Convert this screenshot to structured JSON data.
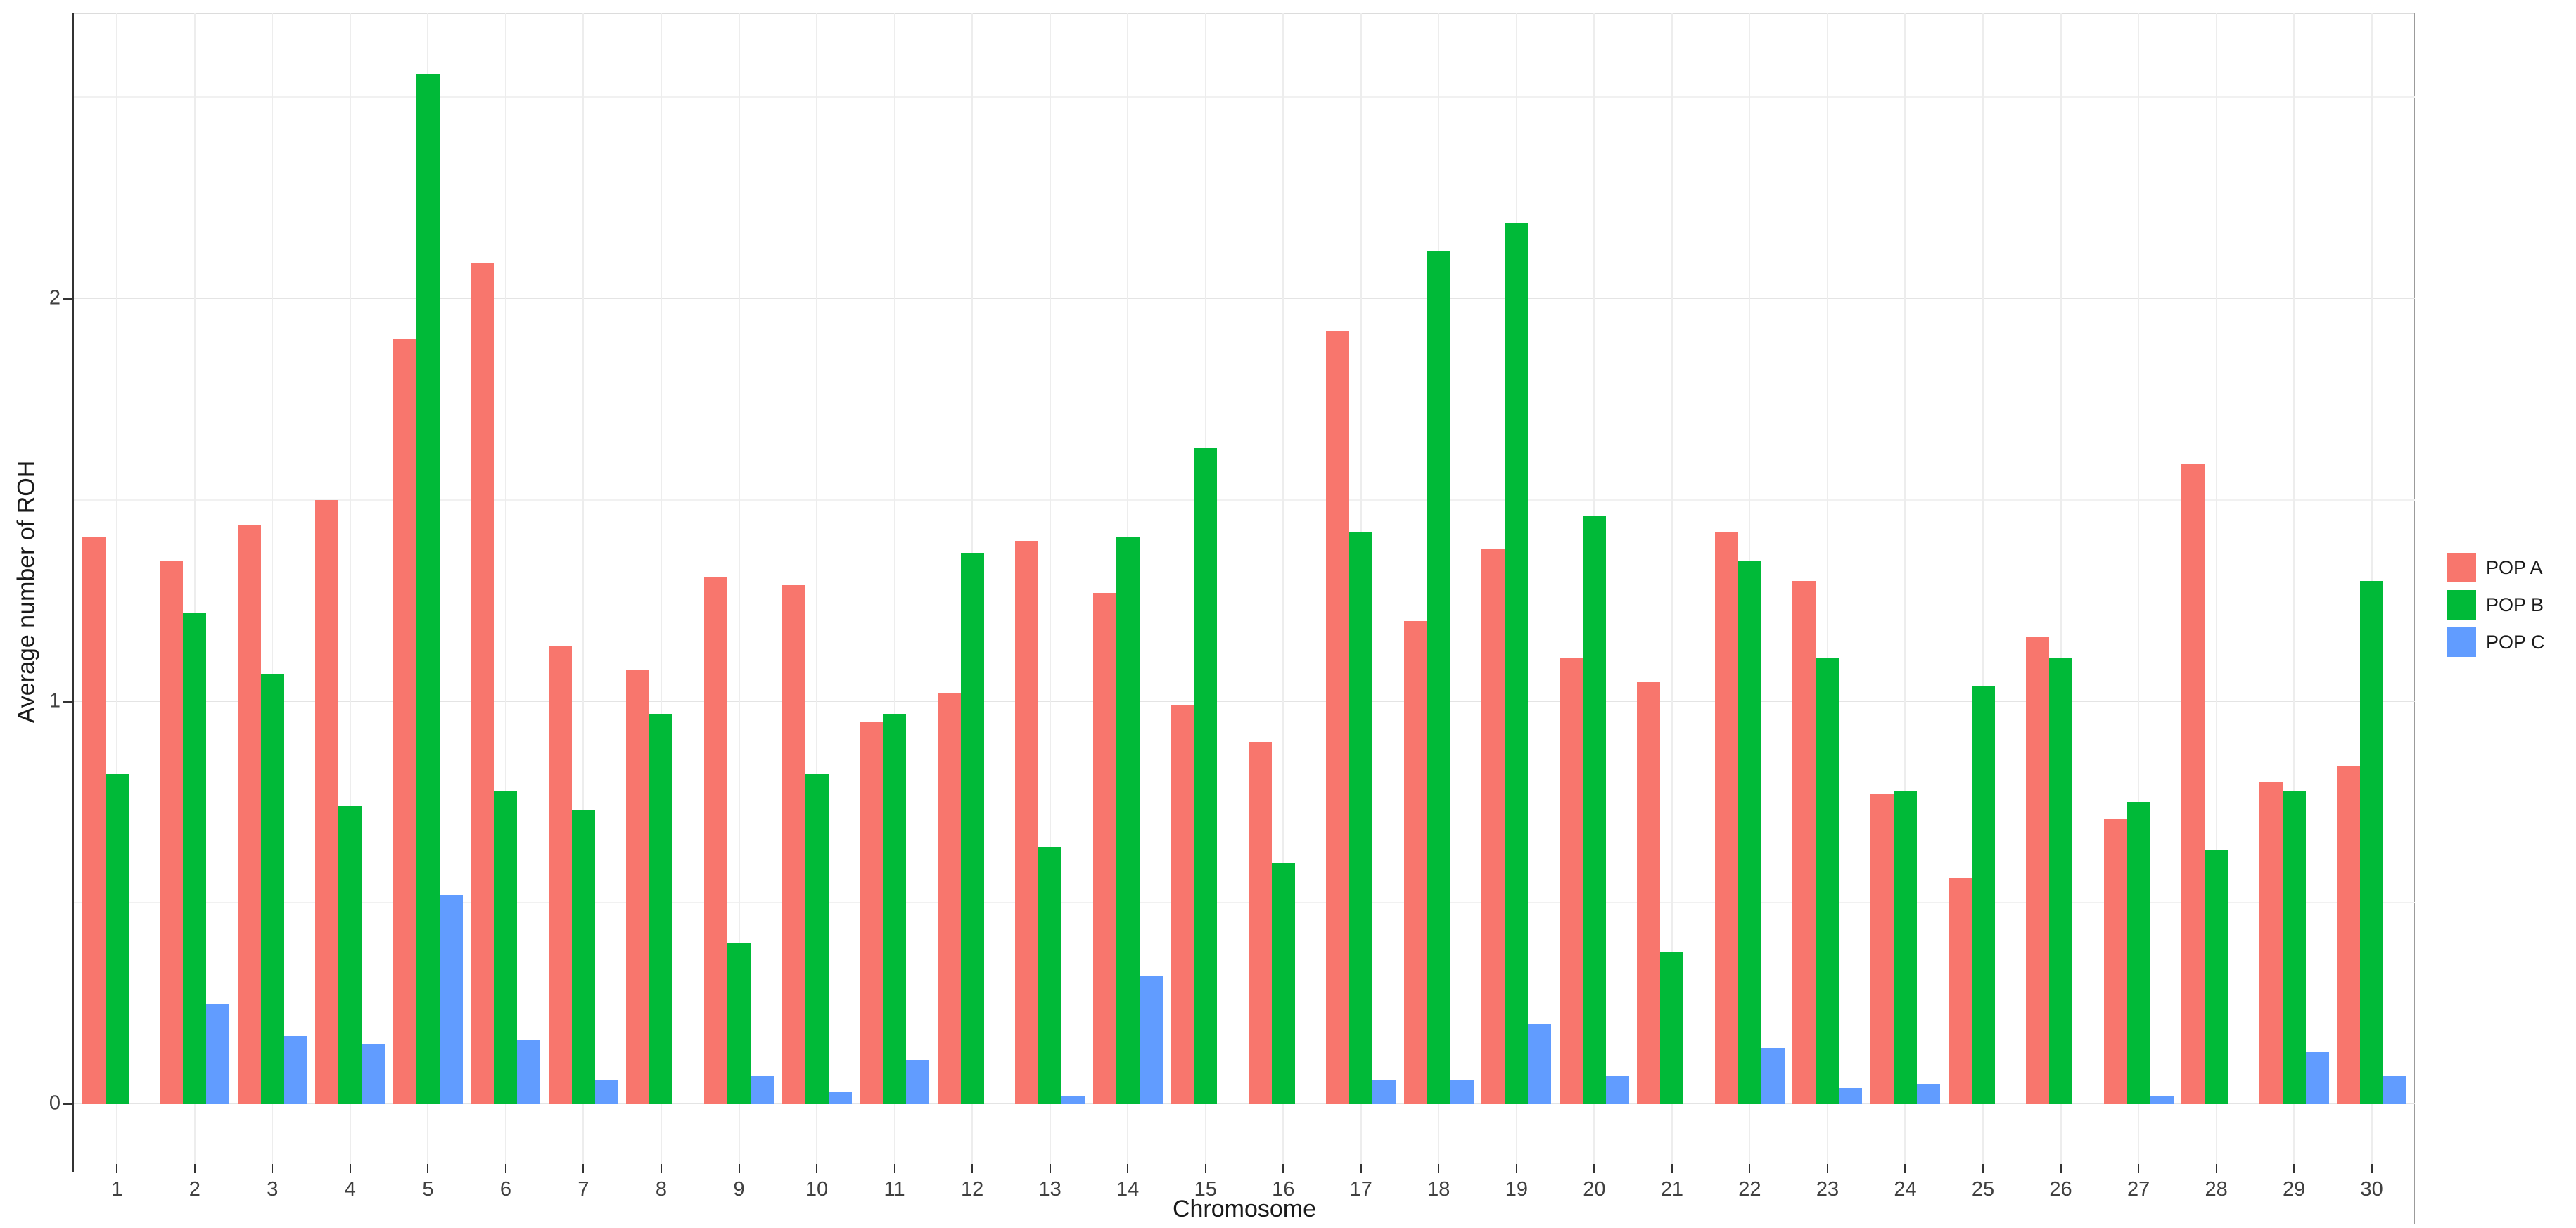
{
  "axes": {
    "y_title": "Average number of ROH",
    "x_title": "Chromosome",
    "y_tick_labels": [
      "0",
      "1",
      "2"
    ]
  },
  "legend": {
    "entries": [
      {
        "label": "POP A",
        "color": "#F8766D"
      },
      {
        "label": "POP B",
        "color": "#00BA38"
      },
      {
        "label": "POP C",
        "color": "#619CFF"
      }
    ]
  },
  "colors": {
    "pop_a": "#F8766D",
    "pop_b": "#00BA38",
    "pop_c": "#619CFF",
    "grid_major": "#e4e4e4",
    "grid_minor": "#f1f1f1",
    "axis_line": "#333333",
    "tick_text": "#404040",
    "title_text": "#1a1a1a"
  },
  "chart_data": {
    "type": "bar",
    "title": "",
    "xlabel": "Chromosome",
    "ylabel": "Average number of ROH",
    "categories": [
      "1",
      "2",
      "3",
      "4",
      "5",
      "6",
      "7",
      "8",
      "9",
      "10",
      "11",
      "12",
      "13",
      "14",
      "15",
      "16",
      "17",
      "18",
      "19",
      "20",
      "21",
      "22",
      "23",
      "24",
      "25",
      "26",
      "27",
      "28",
      "29",
      "30"
    ],
    "series": [
      {
        "name": "POP A",
        "color": "#F8766D",
        "values": [
          1.41,
          1.35,
          1.44,
          1.5,
          1.9,
          2.09,
          1.14,
          1.08,
          1.31,
          1.29,
          0.95,
          1.02,
          1.4,
          1.27,
          0.99,
          0.9,
          1.92,
          1.2,
          1.38,
          1.11,
          1.05,
          1.42,
          1.3,
          0.77,
          0.56,
          1.16,
          0.71,
          1.59,
          0.8,
          0.84
        ]
      },
      {
        "name": "POP B",
        "color": "#00BA38",
        "values": [
          0.82,
          1.22,
          1.07,
          0.74,
          2.56,
          0.78,
          0.73,
          0.97,
          0.4,
          0.82,
          0.97,
          1.37,
          0.64,
          1.41,
          1.63,
          0.6,
          1.42,
          2.12,
          2.19,
          1.46,
          0.38,
          1.35,
          1.11,
          0.78,
          1.04,
          1.11,
          0.75,
          0.63,
          0.78,
          1.3
        ]
      },
      {
        "name": "POP C",
        "color": "#619CFF",
        "values": [
          0,
          0.25,
          0.17,
          0.15,
          0.52,
          0.16,
          0.06,
          0,
          0.07,
          0.03,
          0.11,
          0,
          0.02,
          0.32,
          0,
          0,
          0.06,
          0.06,
          0.2,
          0.07,
          0,
          0.14,
          0.04,
          0.05,
          0,
          0,
          0.02,
          0,
          0.13,
          0.07
        ]
      }
    ],
    "ylim": [
      -0.15,
      2.71
    ],
    "y_major_breaks": [
      0,
      1,
      2
    ],
    "y_minor_breaks": [
      0.5,
      1.5,
      2.5
    ],
    "grid": true,
    "legend_position": "right"
  }
}
